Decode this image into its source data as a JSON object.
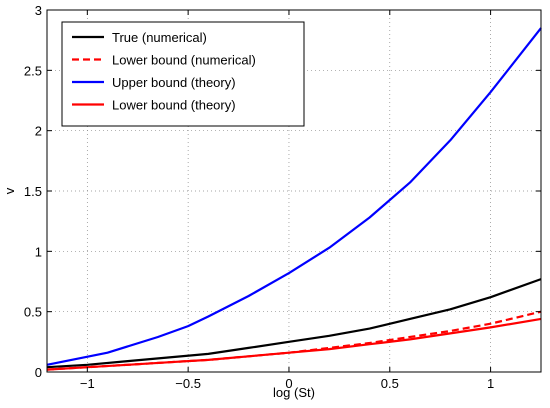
{
  "chart_data": {
    "type": "line",
    "title": "",
    "xlabel": "log (St)",
    "ylabel": "v",
    "xlim": [
      -1.2,
      1.25
    ],
    "ylim": [
      0,
      3
    ],
    "xticks": [
      -1,
      -0.5,
      0,
      0.5,
      1
    ],
    "xtick_labels": [
      "−1",
      "−0.5",
      "0",
      "0.5",
      "1"
    ],
    "yticks": [
      0,
      0.5,
      1,
      1.5,
      2,
      2.5,
      3
    ],
    "ytick_labels": [
      "0",
      "0.5",
      "1",
      "1.5",
      "2",
      "2.5",
      "3"
    ],
    "grid": true,
    "grid_style": "dotted",
    "legend_position": "top-left",
    "series": [
      {
        "name": "True (numerical)",
        "color": "#000000",
        "dash": "solid",
        "x": [
          -1.2,
          -1.0,
          -0.8,
          -0.6,
          -0.4,
          -0.2,
          0.0,
          0.2,
          0.4,
          0.6,
          0.8,
          1.0,
          1.25
        ],
        "y": [
          0.04,
          0.06,
          0.09,
          0.12,
          0.15,
          0.2,
          0.25,
          0.3,
          0.36,
          0.44,
          0.52,
          0.62,
          0.77
        ]
      },
      {
        "name": "Lower bound (numerical)",
        "color": "#ff0000",
        "dash": "dashed",
        "x": [
          -1.2,
          -1.0,
          -0.8,
          -0.6,
          -0.4,
          -0.2,
          0.0,
          0.2,
          0.4,
          0.6,
          0.8,
          1.0,
          1.25
        ],
        "y": [
          0.02,
          0.04,
          0.06,
          0.08,
          0.1,
          0.13,
          0.16,
          0.2,
          0.24,
          0.29,
          0.34,
          0.4,
          0.5
        ]
      },
      {
        "name": "Upper bound (theory)",
        "color": "#0000ff",
        "dash": "solid",
        "x": [
          -1.2,
          -0.9,
          -0.65,
          -0.5,
          -0.4,
          -0.2,
          0.0,
          0.2,
          0.4,
          0.6,
          0.8,
          1.0,
          1.25
        ],
        "y": [
          0.06,
          0.16,
          0.29,
          0.38,
          0.46,
          0.63,
          0.82,
          1.03,
          1.28,
          1.57,
          1.92,
          2.32,
          2.85
        ]
      },
      {
        "name": "Lower bound (theory)",
        "color": "#ff0000",
        "dash": "solid",
        "x": [
          -1.2,
          -1.0,
          -0.8,
          -0.6,
          -0.4,
          -0.2,
          0.0,
          0.2,
          0.4,
          0.6,
          0.8,
          1.0,
          1.25
        ],
        "y": [
          0.02,
          0.04,
          0.06,
          0.08,
          0.1,
          0.13,
          0.16,
          0.19,
          0.23,
          0.27,
          0.32,
          0.37,
          0.44
        ]
      }
    ]
  }
}
